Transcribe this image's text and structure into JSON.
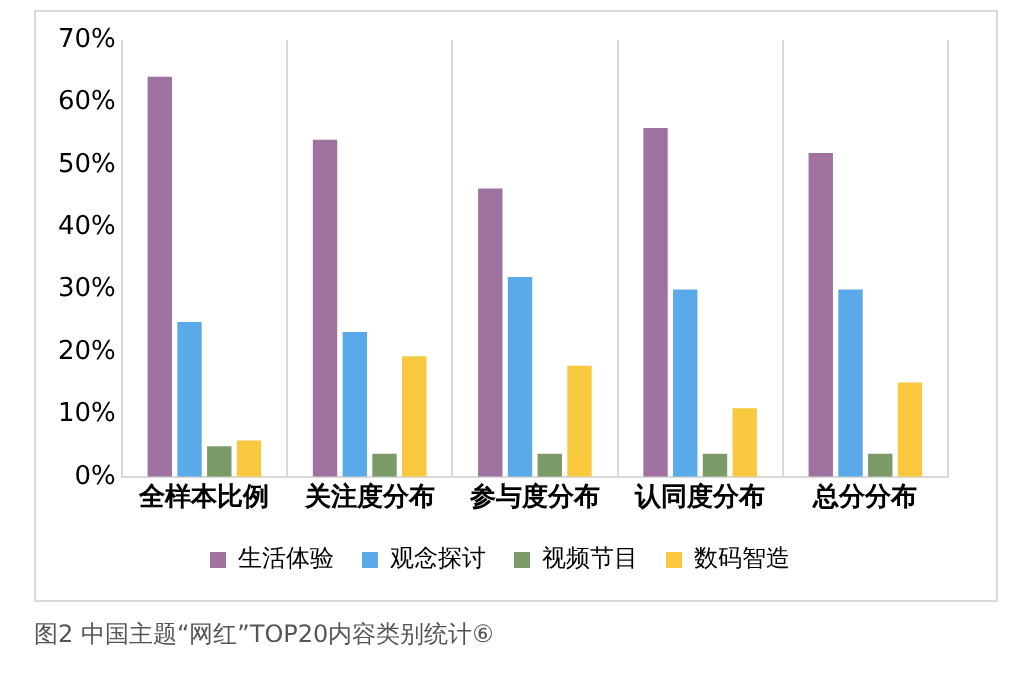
{
  "chart_data": {
    "type": "bar",
    "categories": [
      "全样本比例",
      "关注度分布",
      "参与度分布",
      "认同度分布",
      "总分分布"
    ],
    "series": [
      {
        "name": "生活体验",
        "color": "#a0729f",
        "values": [
          64.1,
          54.0,
          46.2,
          55.9,
          51.9
        ]
      },
      {
        "name": "观念探讨",
        "color": "#5aa9e8",
        "values": [
          24.8,
          23.2,
          32.0,
          30.0,
          30.0
        ]
      },
      {
        "name": "视频节目",
        "color": "#7a9a68",
        "values": [
          4.9,
          3.7,
          3.7,
          3.7,
          3.7
        ]
      },
      {
        "name": "数码智造",
        "color": "#f8c93e",
        "values": [
          5.8,
          19.3,
          17.8,
          11.0,
          15.1
        ]
      }
    ],
    "ylim": [
      0,
      70
    ],
    "yticks": [
      {
        "value": 0,
        "label": "0%"
      },
      {
        "value": 10,
        "label": "10%"
      },
      {
        "value": 20,
        "label": "20%"
      },
      {
        "value": 30,
        "label": "30%"
      },
      {
        "value": 40,
        "label": "40%"
      },
      {
        "value": 50,
        "label": "50%"
      },
      {
        "value": 60,
        "label": "60%"
      },
      {
        "value": 70,
        "label": "70%"
      }
    ],
    "grid": "x",
    "legend": "bottom",
    "annotations": [
      "图2 中国主题“网红”TOP20内容类别统计⑥"
    ]
  }
}
